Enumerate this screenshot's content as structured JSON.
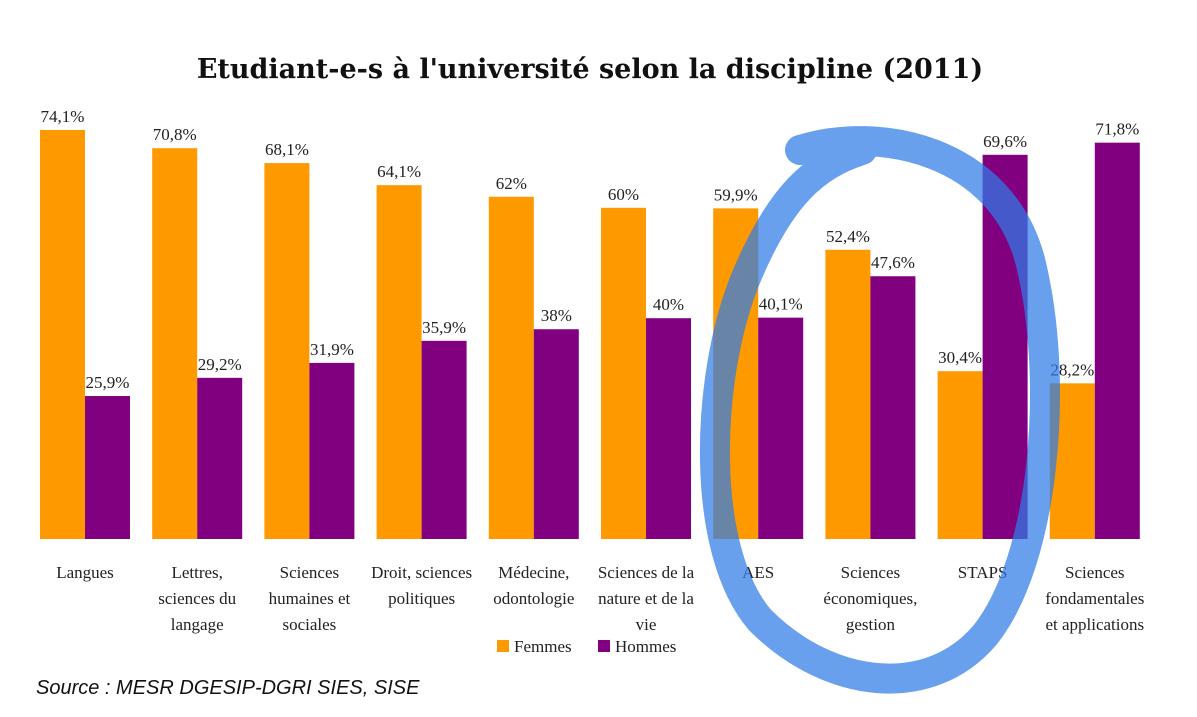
{
  "chart_data": {
    "type": "bar",
    "title": "Etudiant-e-s à l'université selon la discipline (2011)",
    "xlabel": "",
    "ylabel": "",
    "ylim": [
      0,
      80
    ],
    "grid": false,
    "legend_placement": "bottom-center",
    "categories": [
      [
        "Langues"
      ],
      [
        "Lettres,",
        "sciences du",
        "langage"
      ],
      [
        "Sciences",
        "humaines et",
        "sociales"
      ],
      [
        "Droit, sciences",
        "politiques"
      ],
      [
        "Médecine,",
        "odontologie"
      ],
      [
        "Sciences de la",
        "nature et de la",
        "vie"
      ],
      [
        "AES"
      ],
      [
        "Sciences",
        "économiques,",
        "gestion"
      ],
      [
        "STAPS"
      ],
      [
        "Sciences",
        "fondamentales",
        "et applications"
      ]
    ],
    "series": [
      {
        "name": "Femmes",
        "color": "#FF9900",
        "values": [
          74.1,
          70.8,
          68.1,
          64.1,
          62,
          60,
          59.9,
          52.4,
          30.4,
          28.2
        ],
        "labels": [
          "74,1%",
          "70,8%",
          "68,1%",
          "64,1%",
          "62%",
          "60%",
          "59,9%",
          "52,4%",
          "30,4%",
          "28,2%"
        ]
      },
      {
        "name": "Hommes",
        "color": "#800080",
        "values": [
          25.9,
          29.2,
          31.9,
          35.9,
          38,
          40,
          40.1,
          47.6,
          69.6,
          71.8
        ],
        "labels": [
          "25,9%",
          "29,2%",
          "31,9%",
          "35,9%",
          "38%",
          "40%",
          "40,1%",
          "47,6%",
          "69,6%",
          "71,8%"
        ]
      }
    ]
  },
  "source": "Source : MESR DGESIP-DGRI SIES, SISE",
  "annotation": {
    "shape": "hand-drawn-ellipse",
    "color": "#2E7BE6",
    "highlights": [
      "AES",
      "Sciences économiques, gestion"
    ]
  }
}
